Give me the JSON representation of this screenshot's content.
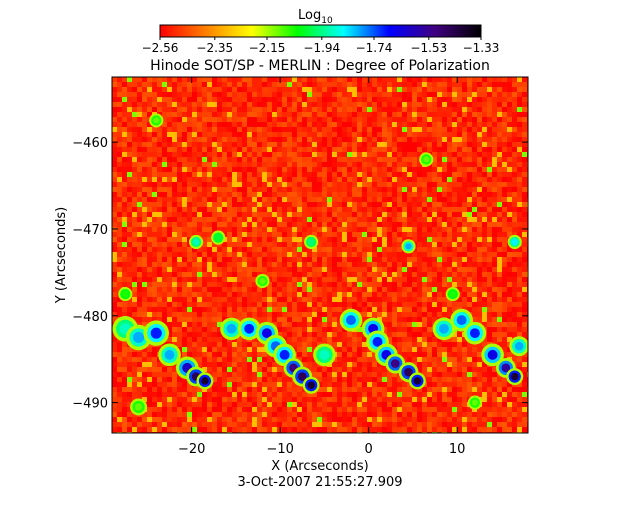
{
  "chart_data": {
    "type": "heatmap",
    "title": "Hinode SOT/SP - MERLIN : Degree of Polarization",
    "xlabel": "X (Arcseconds)",
    "ylabel": "Y (Arcseconds)",
    "timestamp": "3-Oct-2007 21:55:27.909",
    "xlim": [
      -29,
      18
    ],
    "ylim": [
      -493.5,
      -452.5
    ],
    "x_ticks": [
      -20,
      -10,
      0,
      10
    ],
    "x_tick_labels": [
      "−20",
      "−10",
      "0",
      "10"
    ],
    "y_ticks": [
      -460,
      -470,
      -480,
      -490
    ],
    "y_tick_labels": [
      "−460",
      "−470",
      "−480",
      "−490"
    ],
    "colorbar": {
      "label": "Log",
      "label_sub": "10",
      "range": [
        -2.56,
        -1.33
      ],
      "tick_values": [
        -2.56,
        -2.35,
        -2.15,
        -1.94,
        -1.74,
        -1.53,
        -1.33
      ],
      "tick_labels": [
        "−2.56",
        "−2.35",
        "−2.15",
        "−1.94",
        "−1.74",
        "−1.53",
        "−1.33"
      ],
      "colors": [
        "#ff0000",
        "#ff8000",
        "#ffff00",
        "#00ff00",
        "#00ffff",
        "#0000ff",
        "#400080",
        "#000000"
      ]
    },
    "background_level": -2.5,
    "features": [
      {
        "x": -27.5,
        "y": -481.5,
        "level": -1.9,
        "radius": 0.9
      },
      {
        "x": -26.0,
        "y": -482.5,
        "level": -1.8,
        "radius": 0.9
      },
      {
        "x": -24.0,
        "y": -482.0,
        "level": -1.7,
        "radius": 0.9
      },
      {
        "x": -22.5,
        "y": -484.5,
        "level": -1.8,
        "radius": 0.8
      },
      {
        "x": -20.5,
        "y": -486.0,
        "level": -1.6,
        "radius": 0.8
      },
      {
        "x": -19.5,
        "y": -487.0,
        "level": -1.45,
        "radius": 0.7
      },
      {
        "x": -18.5,
        "y": -487.5,
        "level": -1.4,
        "radius": 0.6
      },
      {
        "x": -15.5,
        "y": -481.5,
        "level": -1.8,
        "radius": 0.8
      },
      {
        "x": -13.5,
        "y": -481.5,
        "level": -1.7,
        "radius": 0.8
      },
      {
        "x": -11.5,
        "y": -482.0,
        "level": -1.65,
        "radius": 0.8
      },
      {
        "x": -10.5,
        "y": -483.5,
        "level": -1.75,
        "radius": 0.8
      },
      {
        "x": -9.5,
        "y": -484.5,
        "level": -1.7,
        "radius": 0.8
      },
      {
        "x": -8.5,
        "y": -486.0,
        "level": -1.5,
        "radius": 0.7
      },
      {
        "x": -7.5,
        "y": -487.0,
        "level": -1.45,
        "radius": 0.7
      },
      {
        "x": -6.5,
        "y": -488.0,
        "level": -1.4,
        "radius": 0.6
      },
      {
        "x": -5.0,
        "y": -484.5,
        "level": -1.9,
        "radius": 0.8
      },
      {
        "x": -2.0,
        "y": -480.5,
        "level": -1.75,
        "radius": 0.8
      },
      {
        "x": 0.5,
        "y": -481.5,
        "level": -1.65,
        "radius": 0.8
      },
      {
        "x": 1.0,
        "y": -483.0,
        "level": -1.7,
        "radius": 0.8
      },
      {
        "x": 2.0,
        "y": -484.5,
        "level": -1.65,
        "radius": 0.8
      },
      {
        "x": 3.0,
        "y": -485.5,
        "level": -1.5,
        "radius": 0.7
      },
      {
        "x": 4.5,
        "y": -486.5,
        "level": -1.45,
        "radius": 0.7
      },
      {
        "x": 5.5,
        "y": -487.5,
        "level": -1.4,
        "radius": 0.6
      },
      {
        "x": 8.5,
        "y": -481.5,
        "level": -1.8,
        "radius": 0.8
      },
      {
        "x": 10.5,
        "y": -480.5,
        "level": -1.75,
        "radius": 0.8
      },
      {
        "x": 12.0,
        "y": -482.0,
        "level": -1.7,
        "radius": 0.8
      },
      {
        "x": 14.0,
        "y": -484.5,
        "level": -1.65,
        "radius": 0.8
      },
      {
        "x": 15.5,
        "y": -486.0,
        "level": -1.55,
        "radius": 0.7
      },
      {
        "x": 16.5,
        "y": -487.0,
        "level": -1.4,
        "radius": 0.6
      },
      {
        "x": 17.0,
        "y": -483.5,
        "level": -1.8,
        "radius": 0.7
      },
      {
        "x": -19.5,
        "y": -471.5,
        "level": -1.9,
        "radius": 0.5
      },
      {
        "x": -17.0,
        "y": -471.0,
        "level": -2.0,
        "radius": 0.5
      },
      {
        "x": -6.5,
        "y": -471.5,
        "level": -1.95,
        "radius": 0.5
      },
      {
        "x": 4.5,
        "y": -472.0,
        "level": -1.8,
        "radius": 0.5
      },
      {
        "x": 16.5,
        "y": -471.5,
        "level": -1.85,
        "radius": 0.5
      },
      {
        "x": -12.0,
        "y": -476.0,
        "level": -2.1,
        "radius": 0.5
      },
      {
        "x": 9.5,
        "y": -477.5,
        "level": -2.05,
        "radius": 0.5
      },
      {
        "x": -27.5,
        "y": -477.5,
        "level": -2.05,
        "radius": 0.5
      },
      {
        "x": -24.0,
        "y": -457.5,
        "level": -2.1,
        "radius": 0.5
      },
      {
        "x": 6.5,
        "y": -462.0,
        "level": -2.1,
        "radius": 0.5
      },
      {
        "x": -26.0,
        "y": -490.5,
        "level": -2.1,
        "radius": 0.6
      },
      {
        "x": 12.0,
        "y": -490.0,
        "level": -2.1,
        "radius": 0.5
      }
    ]
  }
}
